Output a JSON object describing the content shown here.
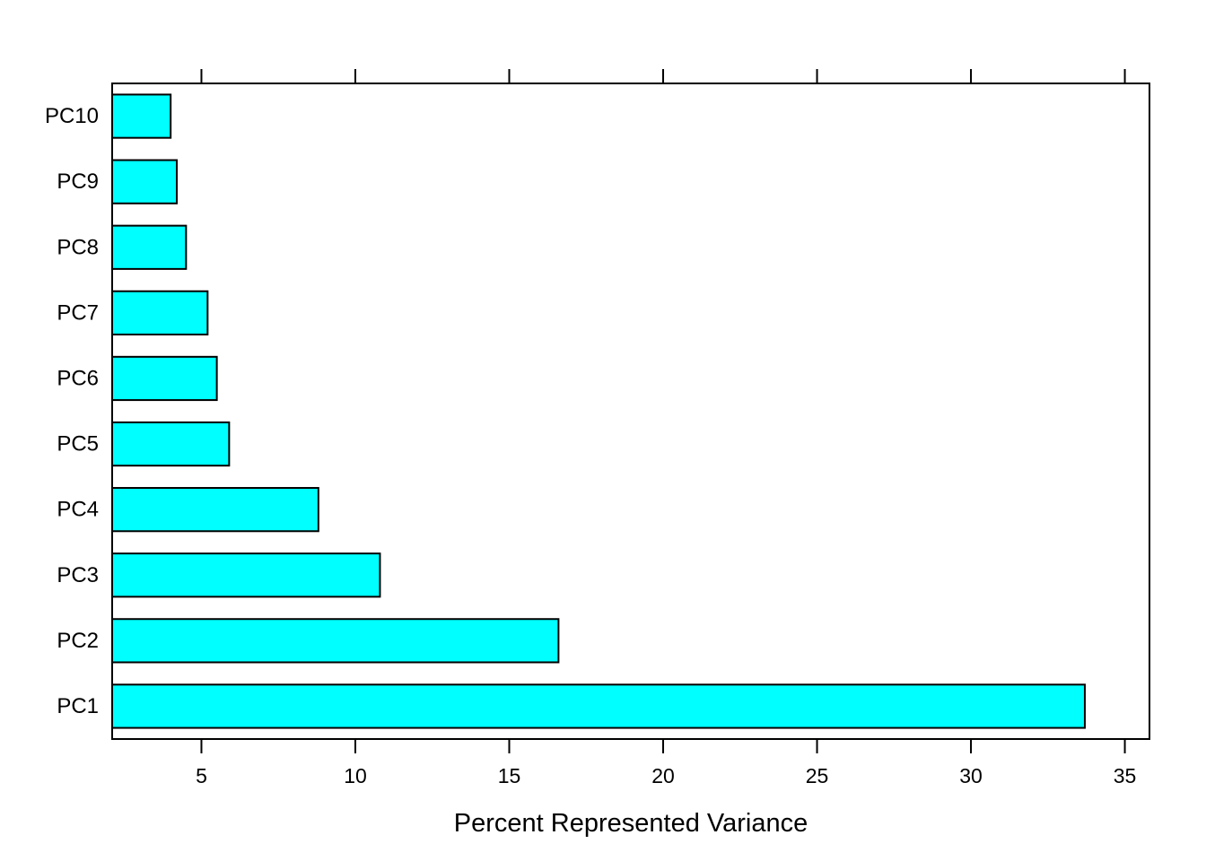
{
  "chart_data": {
    "type": "bar",
    "orientation": "horizontal",
    "categories": [
      "PC1",
      "PC2",
      "PC3",
      "PC4",
      "PC5",
      "PC6",
      "PC7",
      "PC8",
      "PC9",
      "PC10"
    ],
    "values": [
      33.7,
      16.6,
      10.8,
      8.8,
      5.9,
      5.5,
      5.2,
      4.5,
      4.2,
      4.0
    ],
    "xlabel": "Percent Represented Variance",
    "ylabel": "",
    "xlim": [
      2.1,
      35.8
    ],
    "xticks": [
      5,
      10,
      15,
      20,
      25,
      30,
      35
    ],
    "tick_labels": [
      "5",
      "10",
      "15",
      "20",
      "25",
      "30",
      "35"
    ],
    "grid": false,
    "bar_color": "#00ffff",
    "edge_color": "#000000"
  }
}
